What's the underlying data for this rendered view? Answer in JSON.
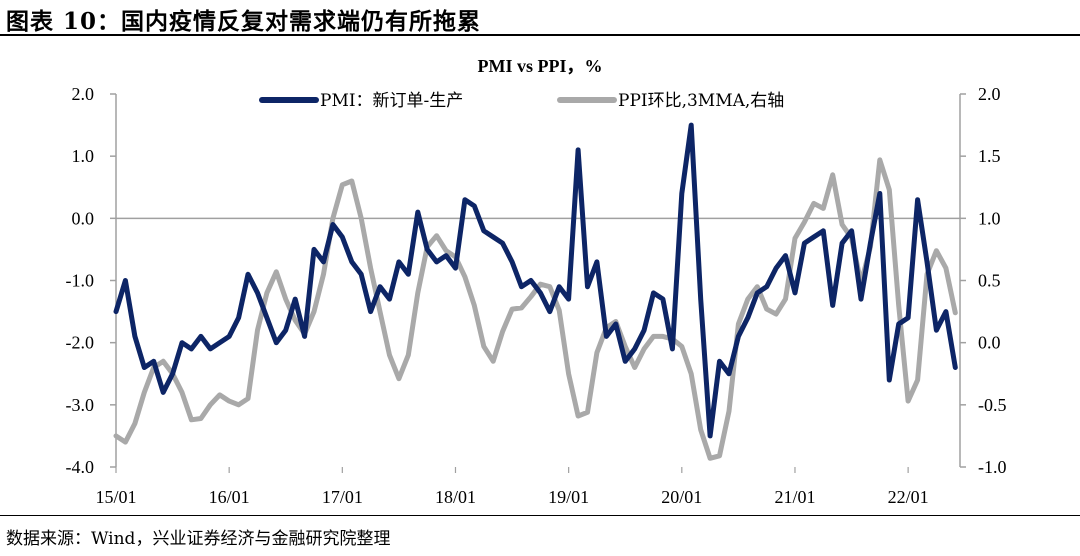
{
  "figure_title": "图表 10：国内疫情反复对需求端仍有所拖累",
  "source_note": "数据来源：Wind，兴业证券经济与金融研究院整理",
  "chart_data": {
    "type": "line",
    "title": "PMI vs PPI，%",
    "xlabel": "",
    "ylabel": "",
    "x_tick_labels": [
      "15/01",
      "16/01",
      "17/01",
      "18/01",
      "19/01",
      "20/01",
      "21/01",
      "22/01"
    ],
    "y_left": {
      "ylim": [
        -4.0,
        2.0
      ],
      "ticks": [
        "2.0",
        "1.0",
        "0.0",
        "-1.0",
        "-2.0",
        "-3.0",
        "-4.0"
      ]
    },
    "y_right": {
      "ylim": [
        -1.0,
        2.0
      ],
      "ticks": [
        "2.0",
        "1.5",
        "1.0",
        "0.5",
        "0.0",
        "-0.5",
        "-1.0"
      ]
    },
    "grid": false,
    "legend_position": "top",
    "colors": {
      "pmi": "#0d2566",
      "ppi": "#a9a9a9"
    },
    "series": [
      {
        "name": "PMI：新订单-生产",
        "axis": "left",
        "start": "2015-01",
        "values": [
          -1.5,
          -1.0,
          -1.9,
          -2.4,
          -2.3,
          -2.8,
          -2.5,
          -2.0,
          -2.1,
          -1.9,
          -2.1,
          -2.0,
          -1.9,
          -1.6,
          -0.9,
          -1.2,
          -1.6,
          -2.0,
          -1.8,
          -1.3,
          -1.9,
          -0.5,
          -0.7,
          -0.1,
          -0.3,
          -0.7,
          -0.9,
          -1.5,
          -1.1,
          -1.3,
          -0.7,
          -0.9,
          0.1,
          -0.5,
          -0.7,
          -0.6,
          -0.8,
          0.3,
          0.2,
          -0.2,
          -0.3,
          -0.4,
          -0.7,
          -1.1,
          -1.0,
          -1.2,
          -1.5,
          -1.1,
          -1.3,
          1.1,
          -1.1,
          -0.7,
          -1.9,
          -1.7,
          -2.3,
          -2.1,
          -1.8,
          -1.2,
          -1.3,
          -2.1,
          0.4,
          1.5,
          -1.3,
          -3.5,
          -2.3,
          -2.5,
          -1.9,
          -1.6,
          -1.2,
          -1.1,
          -0.8,
          -0.6,
          -1.2,
          -0.4,
          -0.3,
          -0.2,
          -1.4,
          -0.4,
          -0.2,
          -1.3,
          -0.4,
          0.4,
          -2.6,
          -1.7,
          -1.6,
          0.3,
          -0.7,
          -1.8,
          -1.5,
          -2.4
        ]
      },
      {
        "name": "PPI环比,3MMA,右轴",
        "axis": "right",
        "start": "2015-01",
        "values": [
          -0.75,
          -0.8,
          -0.65,
          -0.4,
          -0.2,
          -0.15,
          -0.25,
          -0.4,
          -0.62,
          -0.61,
          -0.5,
          -0.42,
          -0.47,
          -0.5,
          -0.45,
          0.1,
          0.4,
          0.57,
          0.35,
          0.18,
          0.07,
          0.25,
          0.55,
          1.0,
          1.27,
          1.3,
          1.0,
          0.6,
          0.25,
          -0.1,
          -0.29,
          -0.1,
          0.4,
          0.77,
          0.86,
          0.74,
          0.69,
          0.53,
          0.3,
          -0.03,
          -0.15,
          0.09,
          0.27,
          0.28,
          0.37,
          0.47,
          0.45,
          0.26,
          -0.25,
          -0.59,
          -0.56,
          -0.08,
          0.12,
          0.17,
          -0.03,
          -0.2,
          -0.05,
          0.05,
          0.05,
          0.03,
          -0.03,
          -0.25,
          -0.7,
          -0.93,
          -0.91,
          -0.55,
          0.15,
          0.35,
          0.45,
          0.27,
          0.23,
          0.35,
          0.84,
          0.97,
          1.12,
          1.08,
          1.35,
          0.95,
          0.84,
          0.48,
          0.77,
          1.47,
          1.23,
          0.3,
          -0.47,
          -0.3,
          0.55,
          0.74,
          0.6,
          0.24
        ]
      }
    ]
  }
}
